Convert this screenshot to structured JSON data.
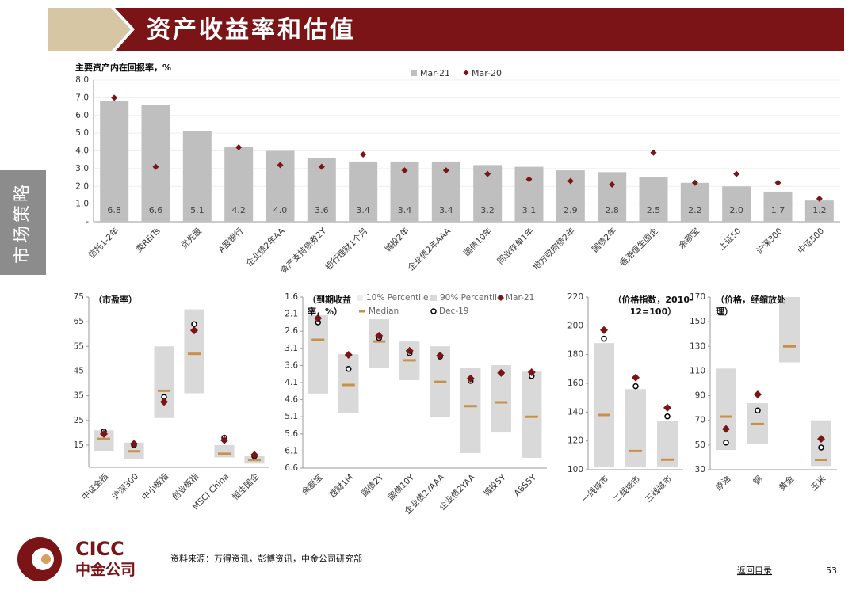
{
  "header": {
    "title": "资产收益率和估值",
    "section": "市场策略"
  },
  "chart_data": [
    {
      "type": "bar",
      "title": "主要资产内在回报率，%",
      "categories": [
        "信托1-2年",
        "类REITs",
        "优先股",
        "A股银行",
        "企业债2年AA",
        "资产支持债券2Y",
        "银行理财1个月",
        "城投2年",
        "企业债2年AAA",
        "国债10年",
        "同业存单1年",
        "地方政府债2年",
        "国债2年",
        "香港恒生国企",
        "余额宝",
        "上证50",
        "沪深300",
        "中证500"
      ],
      "series": [
        {
          "name": "Mar-21",
          "color": "#bfbfbf",
          "values": [
            6.8,
            6.6,
            5.1,
            4.2,
            4.0,
            3.6,
            3.4,
            3.4,
            3.4,
            3.2,
            3.1,
            2.9,
            2.8,
            2.5,
            2.2,
            2.0,
            1.7,
            1.2
          ],
          "value_labels": [
            "6.8",
            "6.6",
            "5.1",
            "4.2",
            "4.0",
            "3.6",
            "3.4",
            "3.4",
            "3.4",
            "3.2",
            "3.1",
            "2.9",
            "2.8",
            "2.5",
            "2.2",
            "2.0",
            "1.7",
            "1.2"
          ]
        },
        {
          "name": "Mar-20",
          "color": "#7b1416",
          "values": [
            7.0,
            3.1,
            null,
            4.2,
            3.2,
            3.1,
            3.8,
            2.9,
            2.9,
            2.7,
            2.4,
            2.3,
            2.1,
            3.9,
            2.2,
            2.7,
            2.2,
            1.3
          ]
        }
      ],
      "ylim": [
        0,
        8
      ],
      "yticks": [
        {
          "value": 0,
          "label": "-"
        },
        {
          "value": 1,
          "label": "1.0"
        },
        {
          "value": 2,
          "label": "2.0"
        },
        {
          "value": 3,
          "label": "3.0"
        },
        {
          "value": 4,
          "label": "4.0"
        },
        {
          "value": 5,
          "label": "5.0"
        },
        {
          "value": 6,
          "label": "6.0"
        },
        {
          "value": 7,
          "label": "7.0"
        },
        {
          "value": 8,
          "label": "8.0"
        }
      ],
      "grid": true
    },
    {
      "type": "range",
      "title": "（市盈率）",
      "categories": [
        "中证全指",
        "沪深300",
        "中小板指",
        "创业板指",
        "MSCI China",
        "恒生国企"
      ],
      "series": [
        {
          "values": [
            12.5,
            9.5,
            26,
            36,
            10,
            7.5
          ]
        },
        {
          "color": "#d9d9d9",
          "values": [
            21,
            16,
            55,
            70,
            15,
            10.5
          ]
        },
        {
          "color": "#c8914a",
          "values": [
            17.5,
            12.5,
            37,
            52,
            11.5,
            9
          ]
        },
        {
          "color": "#7b1416",
          "values": [
            19.5,
            15.5,
            32.5,
            61.5,
            17,
            11
          ]
        },
        {
          "color": "#000000",
          "values": [
            20.5,
            15,
            34.5,
            64,
            18,
            10.5
          ]
        }
      ],
      "ylim": [
        6,
        75
      ],
      "yticks": [
        15,
        25,
        35,
        45,
        55,
        65,
        75
      ]
    },
    {
      "type": "range",
      "title": "（到期收益率，%）",
      "categories": [
        "余额宝",
        "理财1M",
        "国债2Y",
        "国债10Y",
        "企业债2YAAA",
        "企业债2YAA",
        "城投5Y",
        "ABS5Y"
      ],
      "series": [
        {
          "name": "10% Percentile",
          "color": "#ededed",
          "values": [
            4.42,
            4.98,
            3.68,
            4.03,
            5.12,
            6.16,
            5.56,
            6.3
          ]
        },
        {
          "name": "90% Percentile",
          "color": "#d9d9d9",
          "values": [
            2.13,
            3.27,
            2.25,
            2.9,
            3.04,
            3.66,
            3.59,
            3.78
          ]
        },
        {
          "name": "Median",
          "color": "#c8914a",
          "values": [
            2.85,
            4.17,
            2.9,
            3.45,
            4.08,
            4.79,
            4.68,
            5.1
          ]
        },
        {
          "name": "Mar-21",
          "color": "#7b1416",
          "values": [
            2.22,
            3.29,
            2.73,
            3.17,
            3.31,
            3.98,
            3.82,
            3.8
          ]
        },
        {
          "name": "Dec-19",
          "color": "#000000",
          "values": [
            2.34,
            3.7,
            2.8,
            3.24,
            3.34,
            4.05,
            3.82,
            3.91
          ]
        }
      ],
      "ylim": [
        6.6,
        1.6
      ],
      "yticks": [
        1.6,
        2.1,
        2.6,
        3.1,
        3.6,
        4.1,
        4.6,
        5.1,
        5.6,
        6.1,
        6.6
      ]
    },
    {
      "type": "range",
      "title": "（价格指数，2010-12=100）",
      "categories": [
        "一线城市",
        "二线城市",
        "三线城市"
      ],
      "series": [
        {
          "values": [
            102,
            102,
            102
          ]
        },
        {
          "color": "#d9d9d9",
          "values": [
            188,
            156,
            134
          ]
        },
        {
          "color": "#c8914a",
          "values": [
            138,
            113,
            107
          ]
        },
        {
          "color": "#7b1416",
          "values": [
            197,
            164,
            143
          ]
        },
        {
          "color": "#000000",
          "values": [
            191,
            158,
            137
          ]
        }
      ],
      "ylim": [
        100,
        220
      ],
      "yticks": [
        100,
        120,
        140,
        160,
        180,
        200,
        220
      ]
    },
    {
      "type": "range",
      "title": "（价格，经缩放处理）",
      "categories": [
        "原油",
        "铜",
        "黄金",
        "玉米"
      ],
      "series": [
        {
          "values": [
            46,
            51,
            117,
            33
          ]
        },
        {
          "color": "#d9d9d9",
          "values": [
            112,
            84,
            170,
            70
          ]
        },
        {
          "color": "#c8914a",
          "values": [
            73,
            67,
            130,
            38
          ]
        },
        {
          "color": "#7b1416",
          "values": [
            63,
            91,
            null,
            55
          ]
        },
        {
          "color": "#000000",
          "values": [
            52,
            78,
            null,
            48
          ]
        }
      ],
      "ylim": [
        30,
        170
      ],
      "yticks": [
        30,
        50,
        70,
        90,
        110,
        130,
        150,
        170
      ]
    }
  ],
  "footer": {
    "logo_en": "CICC",
    "logo_cn": "中金公司",
    "source": "资料来源：万得资讯，彭博资讯，中金公司研究部",
    "link": "返回目录",
    "page": "53"
  }
}
